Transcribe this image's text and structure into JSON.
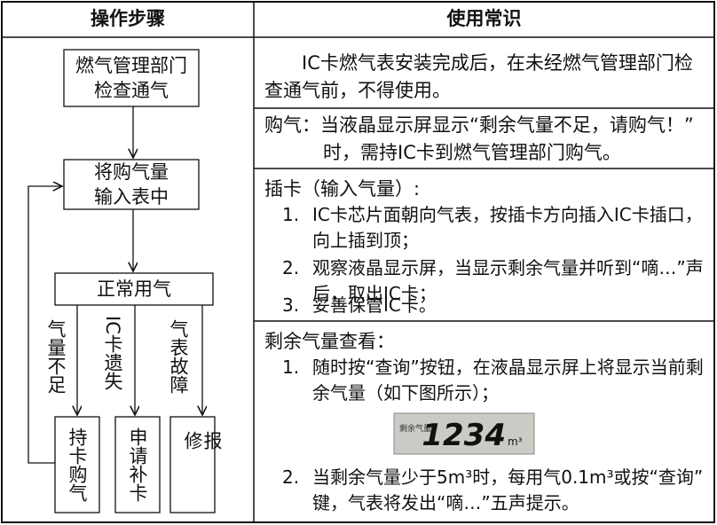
{
  "header": {
    "left": "操作步骤",
    "right": "使用常识"
  },
  "flow": {
    "nodes": [
      {
        "lines": [
          "燃气管理部门",
          "检查通气"
        ]
      },
      {
        "lines": [
          "将购气量",
          "输入表中"
        ]
      },
      {
        "lines": [
          "正常用气"
        ]
      }
    ],
    "branches": [
      "气量不足",
      "IC卡遗失",
      "气表故障"
    ],
    "actions": [
      "持卡购气",
      "申请补卡",
      "报修"
    ]
  },
  "notes": [
    {
      "text": "IC卡燃气表安装完成后，在未经燃气管理部门检查通气前，不得使用。"
    },
    {
      "label": "购气：",
      "text": "当液晶显示屏显示“剩余气量不足，请购气！”时，需持IC卡到燃气管理部门购气。"
    },
    {
      "title": "插卡（输入气量）:",
      "items": [
        {
          "marker": "1.",
          "text": "IC卡芯片面朝向气表，按插卡方向插入IC卡插口，向上插到顶；"
        },
        {
          "marker": "2.",
          "text": "观察液晶显示屏，当显示剩余气量并听到“嘀…”声后，取出IC卡；"
        },
        {
          "marker": "3.",
          "text": "妥善保管IC卡。"
        }
      ]
    },
    {
      "title": "剩余气量查看：",
      "items": [
        {
          "marker": "1.",
          "text": "随时按“查询”按钮，在液晶显示屏上将显示当前剩余气量（如下图所示）；"
        },
        {
          "marker": "2.",
          "text": "当剩余气量少于5m³时，每用气0.1m³或按“查询”键，气表将发出“嘀…”五声提示。"
        }
      ]
    }
  ],
  "lcd": {
    "label": "剩余气量",
    "reading": "1234",
    "unit": "m³"
  }
}
